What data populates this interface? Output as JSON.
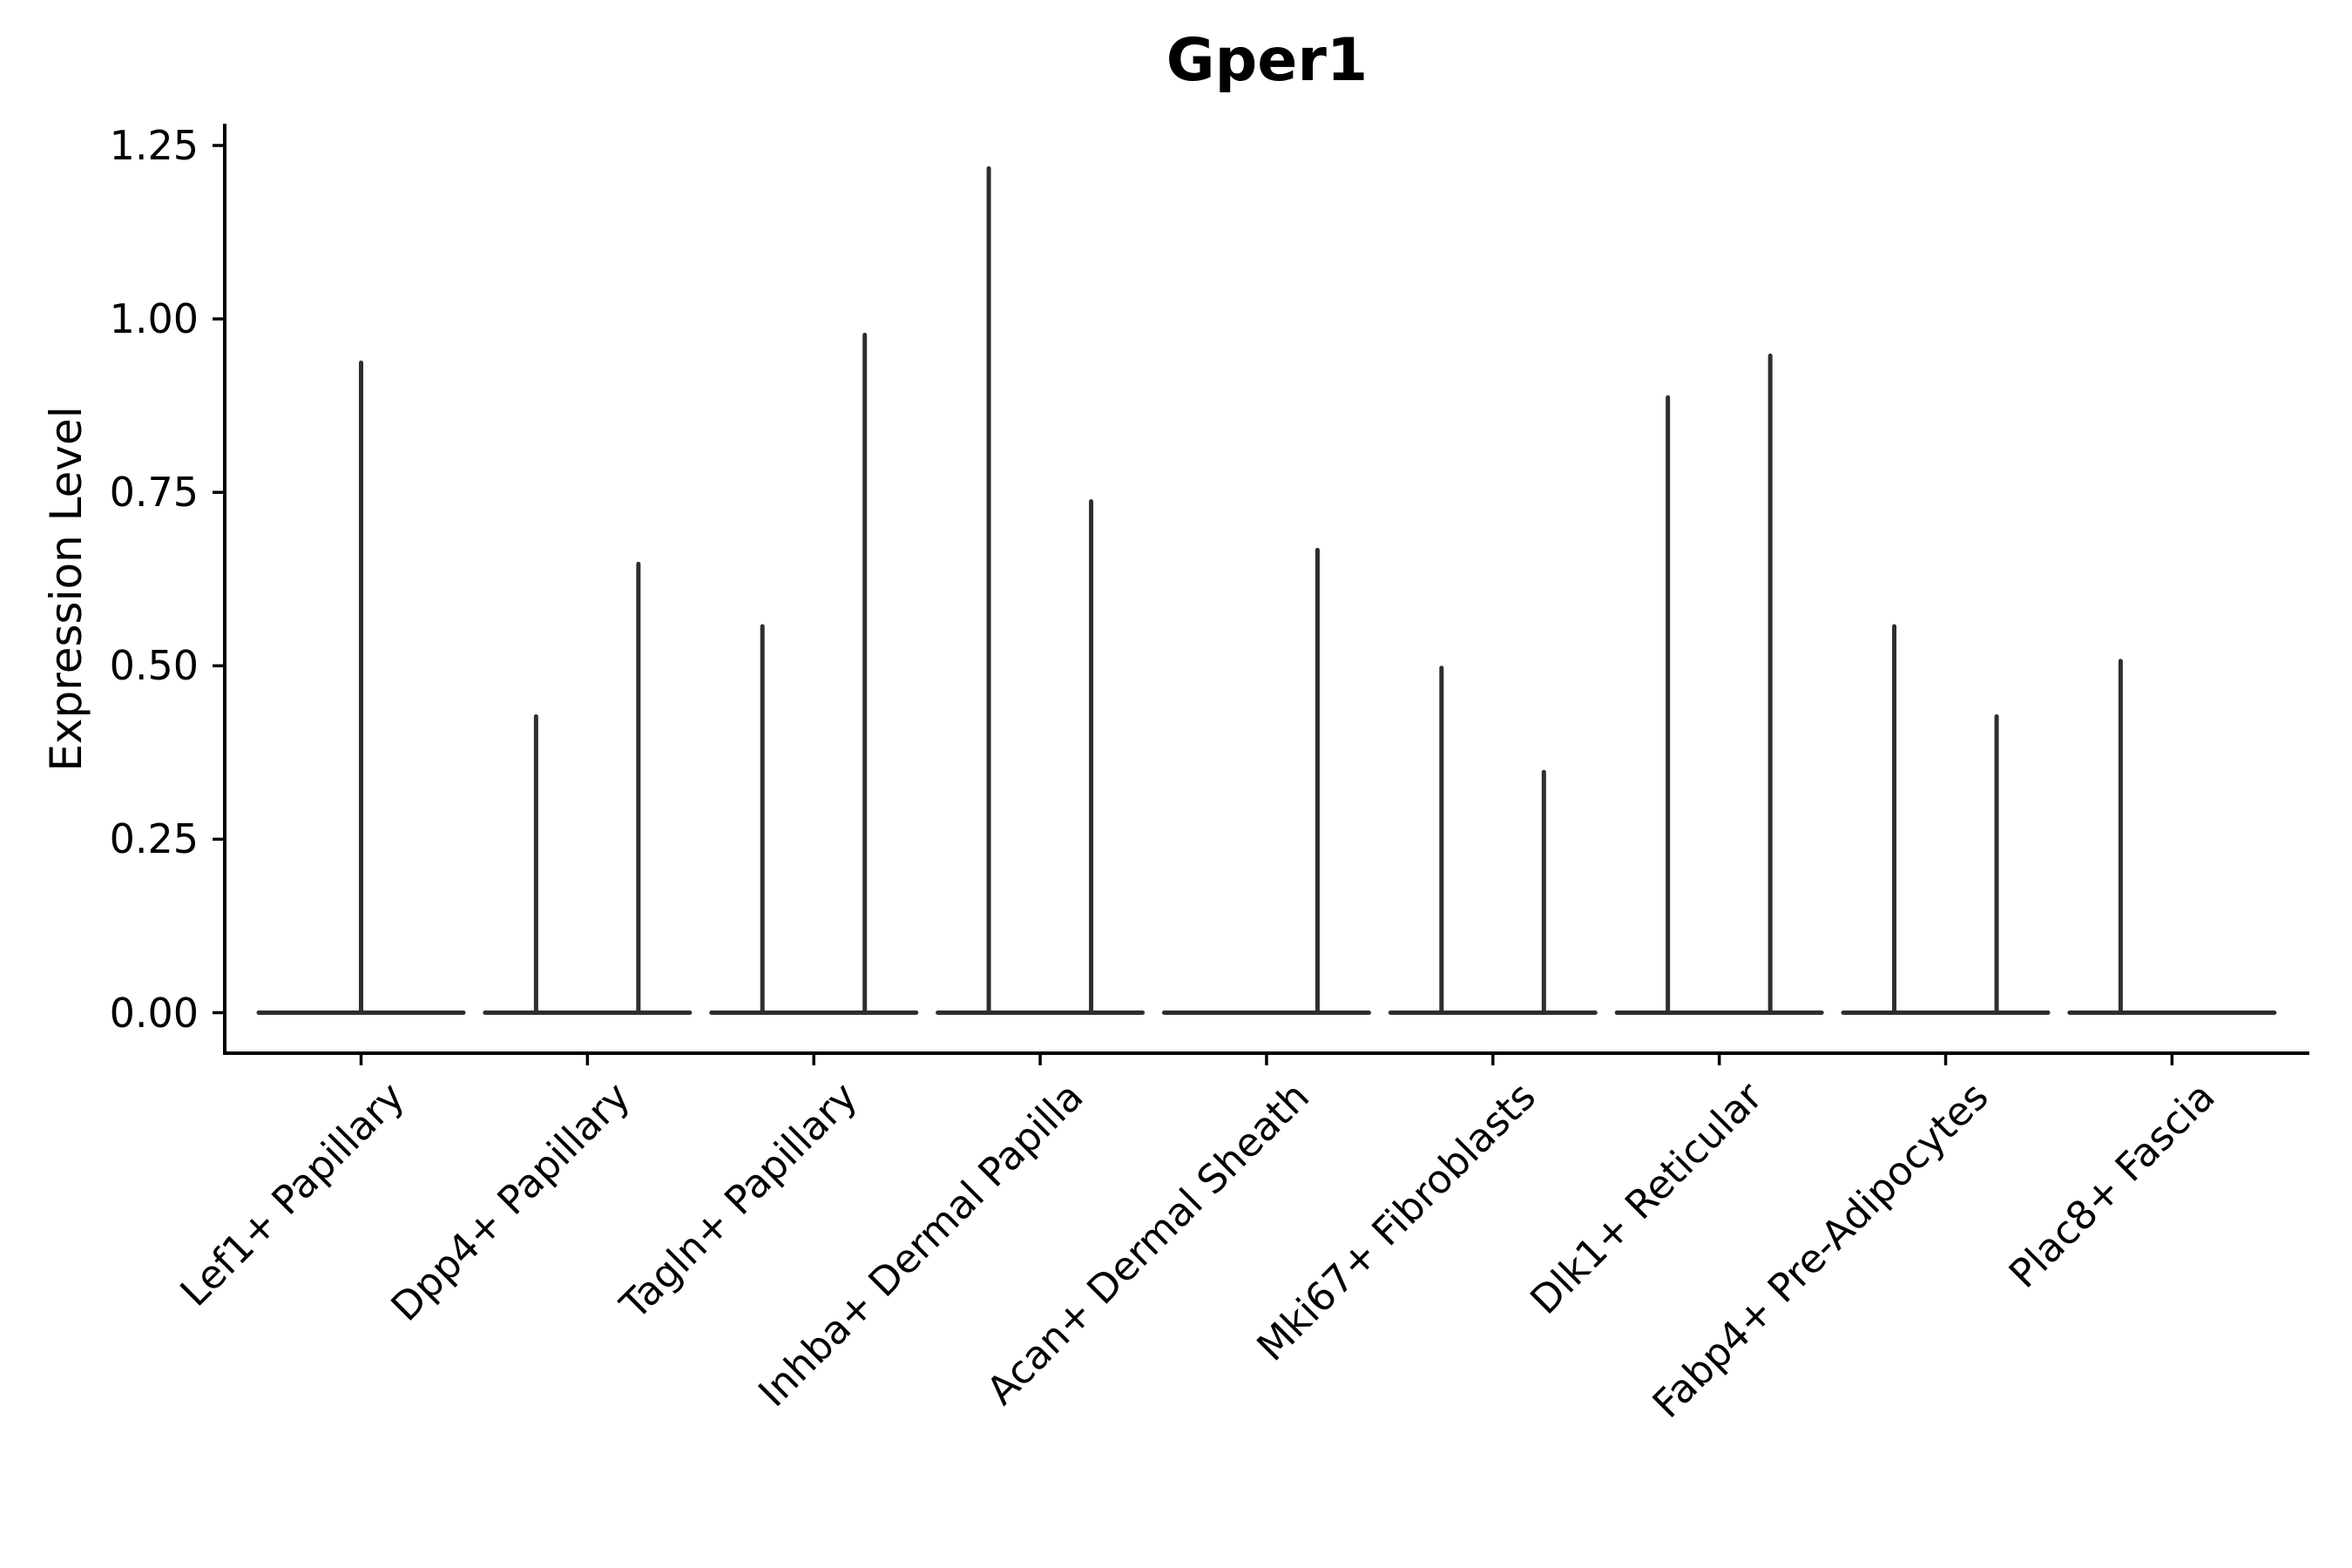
{
  "title": "Gper1",
  "y_axis": {
    "label": "Expression Level",
    "tick_labels": [
      "0.00",
      "0.25",
      "0.50",
      "0.75",
      "1.00",
      "1.25"
    ]
  },
  "chart_data": {
    "type": "violin",
    "title": "Gper1",
    "xlabel": "",
    "ylabel": "Expression Level",
    "grid": false,
    "legend": false,
    "y_ticks": [
      0,
      0.25,
      0.5,
      0.75,
      1.0,
      1.25
    ],
    "y_tick_labels": [
      "0.00",
      "0.25",
      "0.50",
      "0.75",
      "1.00",
      "1.25"
    ],
    "ylim": [
      -0.06,
      1.28
    ],
    "categories": [
      "Lef1+ Papillary",
      "Dpp4+ Papillary",
      "Tagln+ Papillary",
      "Inhba+ Dermal Papilla",
      "Acan+ Dermal Sheath",
      "Mki67+ Fibroblasts",
      "Dlk1+ Reticular",
      "Fabp4+ Pre-Adipocytes",
      "Plac8+ Fascia"
    ],
    "violins": [
      {
        "category": "Lef1+ Papillary",
        "base_at_zero": true,
        "spikes": [
          {
            "position": "center",
            "max": 0.94
          }
        ]
      },
      {
        "category": "Dpp4+ Papillary",
        "base_at_zero": true,
        "spikes": [
          {
            "position": "left",
            "max": 0.43
          },
          {
            "position": "right",
            "max": 0.65
          }
        ]
      },
      {
        "category": "Tagln+ Papillary",
        "base_at_zero": true,
        "spikes": [
          {
            "position": "left",
            "max": 0.56
          },
          {
            "position": "right",
            "max": 0.98
          }
        ]
      },
      {
        "category": "Inhba+ Dermal Papilla",
        "base_at_zero": true,
        "spikes": [
          {
            "position": "left",
            "max": 1.22
          },
          {
            "position": "right",
            "max": 0.74
          }
        ]
      },
      {
        "category": "Acan+ Dermal Sheath",
        "base_at_zero": true,
        "spikes": [
          {
            "position": "right",
            "max": 0.67
          }
        ]
      },
      {
        "category": "Mki67+ Fibroblasts",
        "base_at_zero": true,
        "spikes": [
          {
            "position": "left",
            "max": 0.5
          },
          {
            "position": "right",
            "max": 0.35
          }
        ]
      },
      {
        "category": "Dlk1+ Reticular",
        "base_at_zero": true,
        "spikes": [
          {
            "position": "left",
            "max": 0.89
          },
          {
            "position": "right",
            "max": 0.95
          }
        ]
      },
      {
        "category": "Fabp4+ Pre-Adipocytes",
        "base_at_zero": true,
        "spikes": [
          {
            "position": "left",
            "max": 0.56
          },
          {
            "position": "right",
            "max": 0.43
          }
        ]
      },
      {
        "category": "Plac8+ Fascia",
        "base_at_zero": true,
        "spikes": [
          {
            "position": "left",
            "max": 0.51
          }
        ]
      }
    ],
    "colors": {
      "violin_stroke": "#2e2e2e",
      "axis": "#000000",
      "text": "#000000",
      "background": "#ffffff"
    }
  }
}
